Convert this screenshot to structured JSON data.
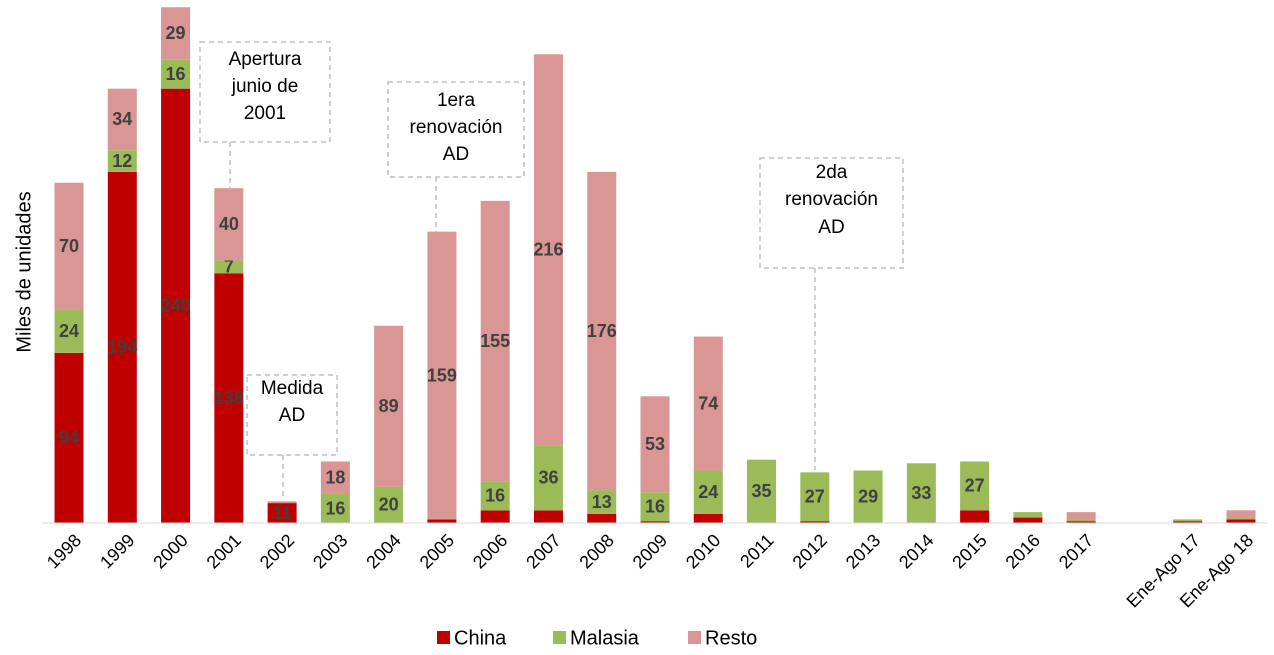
{
  "chart_data": {
    "type": "stacked_bar",
    "y_label": "Miles de unidades",
    "categories": [
      "1998",
      "1999",
      "2000",
      "2001",
      "2002",
      "2003",
      "2004",
      "2005",
      "2006",
      "2007",
      "2008",
      "2009",
      "2010",
      "2011",
      "2012",
      "2013",
      "2014",
      "2015",
      "2016",
      "2017",
      null,
      "Ene-Ago 17",
      "Ene-Ago 18"
    ],
    "series": [
      {
        "name": "China",
        "color": "#c00000",
        "values": [
          94,
          194,
          240,
          138,
          11,
          0,
          0,
          2,
          7,
          7,
          5,
          1,
          5,
          0,
          1,
          0,
          0,
          7,
          3,
          1,
          null,
          1,
          2
        ],
        "value_labels": [
          "94",
          "194",
          "240",
          "138",
          "11",
          null,
          null,
          null,
          null,
          null,
          null,
          null,
          null,
          null,
          null,
          null,
          null,
          null,
          null,
          null,
          null,
          null,
          null
        ]
      },
      {
        "name": "Malasia",
        "color": "#9bbb59",
        "values": [
          24,
          12,
          16,
          7,
          0,
          16,
          20,
          0,
          16,
          36,
          13,
          16,
          24,
          35,
          27,
          29,
          33,
          27,
          3,
          1,
          null,
          1,
          1
        ],
        "value_labels": [
          "24",
          "12",
          "16",
          "7",
          null,
          "16",
          "20",
          null,
          "16",
          "36",
          "13",
          "16",
          "24",
          "35",
          "27",
          "29",
          "33",
          "27",
          null,
          null,
          null,
          null,
          null
        ]
      },
      {
        "name": "Resto",
        "color": "#d99694",
        "values": [
          70,
          34,
          29,
          40,
          1,
          18,
          89,
          159,
          155,
          216,
          176,
          53,
          74,
          0,
          0,
          0,
          0,
          0,
          0,
          4,
          null,
          0,
          4
        ],
        "value_labels": [
          "70",
          "34",
          "29",
          "40",
          null,
          "18",
          "89",
          "159",
          "155",
          "216",
          "176",
          "53",
          "74",
          null,
          null,
          null,
          null,
          null,
          null,
          null,
          null,
          null,
          null
        ]
      }
    ],
    "ylim": [
      0,
      289
    ],
    "legend": "bottom",
    "annotations": [
      {
        "lines": [
          "Apertura",
          "junio de",
          "2001"
        ]
      },
      {
        "lines": [
          "Medida",
          "AD"
        ]
      },
      {
        "lines": [
          "1era",
          "renovación",
          "AD"
        ]
      },
      {
        "lines": [
          "2da",
          "renovación",
          "AD"
        ]
      }
    ]
  }
}
